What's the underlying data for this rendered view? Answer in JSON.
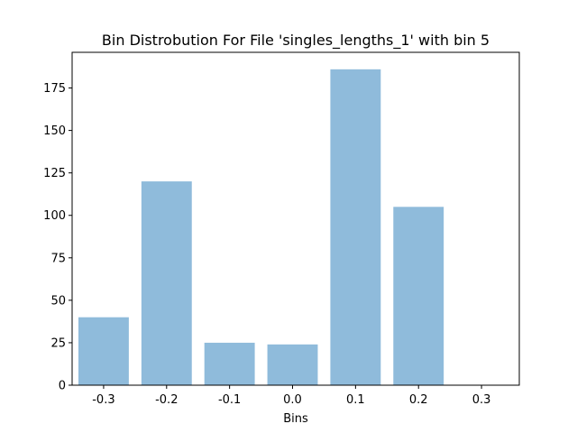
{
  "chart_data": {
    "type": "bar",
    "title": "Bin Distrobution For File 'singles_lengths_1' with bin 5",
    "xlabel": "Bins",
    "ylabel": "",
    "categories": [
      "-0.3",
      "-0.2",
      "-0.1",
      "0.0",
      "0.1",
      "0.2",
      "0.3"
    ],
    "values": [
      40,
      120,
      25,
      24,
      186,
      105,
      0
    ],
    "ylim": [
      0,
      196
    ],
    "yticks": [
      0,
      25,
      50,
      75,
      100,
      125,
      150,
      175
    ],
    "ytick_labels": [
      "0",
      "25",
      "50",
      "75",
      "100",
      "125",
      "150",
      "175"
    ],
    "xlim": [
      -0.5,
      6.6
    ],
    "bar_color": "#8fbbdb",
    "grid": false,
    "legend": "none"
  }
}
